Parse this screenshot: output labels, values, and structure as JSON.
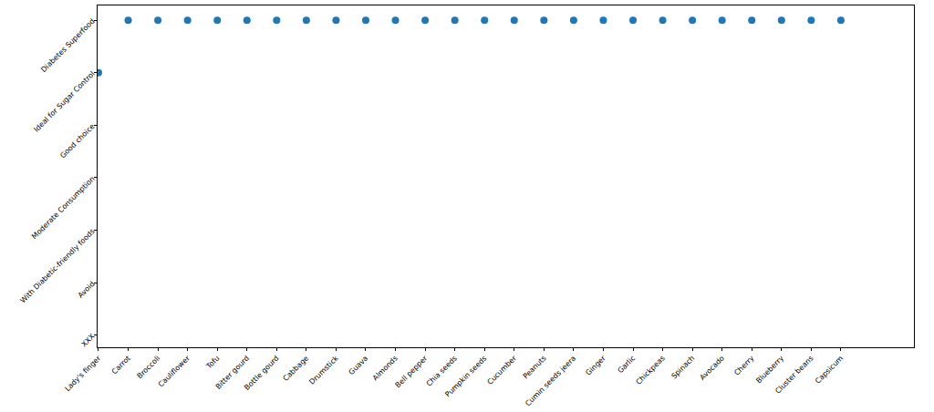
{
  "chart_data": {
    "type": "scatter",
    "categories": [
      "Lady's finger",
      "Carrot",
      "Broccoli",
      "Cauliflower",
      "Tofu",
      "Bitter gourd",
      "Bottle gourd",
      "Cabbage",
      "Drumstick",
      "Guava",
      "Almonds",
      "Bell pepper",
      "Chia seeds",
      "Pumpkin seeds",
      "Cucumber",
      "Peanuts",
      "Cumin seeds jeera",
      "Ginger",
      "Garlic",
      "Chickpeas",
      "Spinach",
      "Avocado",
      "Cherry",
      "Blueberry",
      "Cluster beans",
      "Capsicum"
    ],
    "y_categories": [
      "XXX",
      "Avoid",
      "With Diabetic-friendly foods",
      "Moderate Consumption",
      "Good choice",
      "Ideal for Sugar Control",
      "Diabetes Superfood"
    ],
    "values": [
      "Ideal for Sugar Control",
      "Diabetes Superfood",
      "Diabetes Superfood",
      "Diabetes Superfood",
      "Diabetes Superfood",
      "Diabetes Superfood",
      "Diabetes Superfood",
      "Diabetes Superfood",
      "Diabetes Superfood",
      "Diabetes Superfood",
      "Diabetes Superfood",
      "Diabetes Superfood",
      "Diabetes Superfood",
      "Diabetes Superfood",
      "Diabetes Superfood",
      "Diabetes Superfood",
      "Diabetes Superfood",
      "Diabetes Superfood",
      "Diabetes Superfood",
      "Diabetes Superfood",
      "Diabetes Superfood",
      "Diabetes Superfood",
      "Diabetes Superfood",
      "Diabetes Superfood",
      "Diabetes Superfood",
      "Diabetes Superfood"
    ],
    "xlim": [
      -0.03,
      27.46
    ],
    "ylim": [
      -0.23,
      6.28
    ],
    "color": "#1f77b4",
    "marker": "circle",
    "grid": false
  }
}
